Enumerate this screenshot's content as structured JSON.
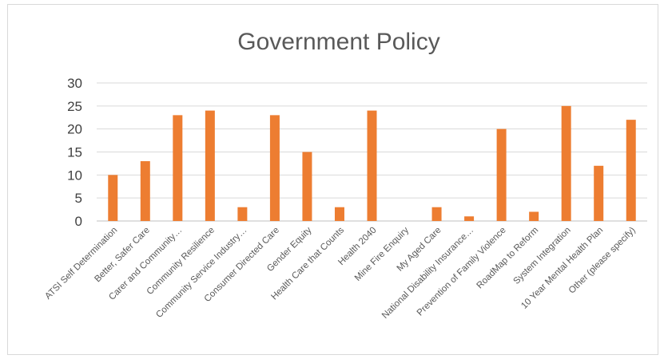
{
  "chart_data": {
    "type": "bar",
    "title": "Government Policy",
    "xlabel": "",
    "ylabel": "",
    "ylim": [
      0,
      30
    ],
    "yticks": [
      0,
      5,
      10,
      15,
      20,
      25,
      30
    ],
    "grid": true,
    "legend": "none",
    "bar_color": "#ED7D31",
    "categories": [
      "ATSI Self Determination",
      "Better, Safer Care",
      "Carer and Community…",
      "Community Resilience",
      "Community Service Industry…",
      "Consumer Directed Care",
      "Gender Equity",
      "Health Care that Counts",
      "Health 2040",
      "Mine Fire Enquiry",
      "My Aged Care",
      "National Disability Insurance…",
      "Prevention of Family Violence",
      "RoadMap to Reform",
      "System Integration",
      "10 Year Mental Health Plan",
      "Other (please specify)"
    ],
    "values": [
      10,
      13,
      23,
      24,
      3,
      23,
      15,
      3,
      24,
      0,
      3,
      1,
      20,
      2,
      25,
      12,
      22
    ]
  }
}
